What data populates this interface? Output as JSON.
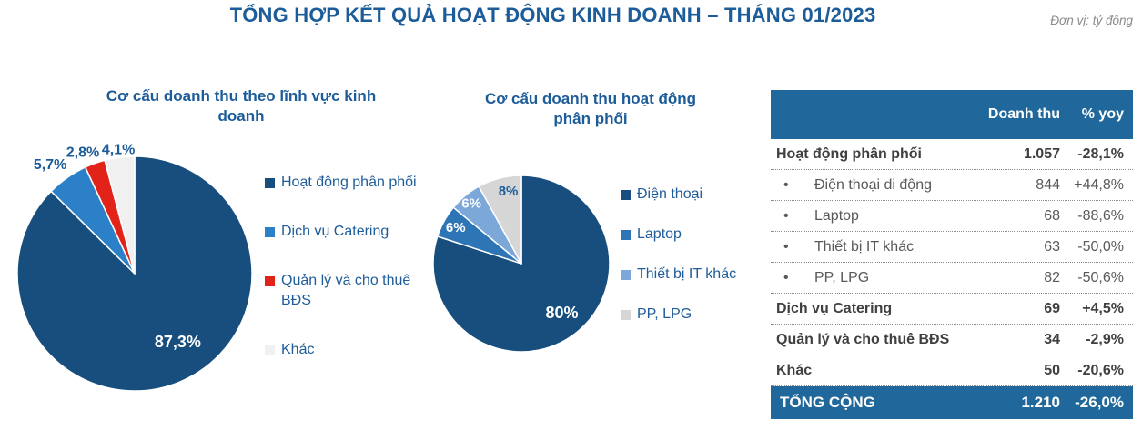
{
  "header": {
    "title": "TỔNG HỢP KẾT QUẢ HOẠT ĐỘNG KINH DOANH – THÁNG 01/2023",
    "unit_note": "Đơn vị: tỷ đồng"
  },
  "colors": {
    "accent_navy": "#1C5C99",
    "table_header_bg": "#20689B",
    "dark_blue": "#174E7D",
    "red": "#E2231A"
  },
  "chart_data": [
    {
      "type": "pie",
      "title": "Cơ cấu doanh thu theo lĩnh vực kinh doanh",
      "labels": [
        "Hoạt động phân phối",
        "Dịch vụ Catering",
        "Quản lý và cho thuê BĐS",
        "Khác"
      ],
      "values": [
        87.3,
        5.7,
        2.8,
        4.1
      ],
      "value_labels": [
        "87,3%",
        "5,7%",
        "2,8%",
        "4,1%"
      ],
      "colors": [
        "#174E7D",
        "#2B80C8",
        "#E2231A",
        "#F0F0F0"
      ],
      "legend_position": "right",
      "start_angle_deg": 0,
      "direction": "clockwise"
    },
    {
      "type": "pie",
      "title": "Cơ cấu doanh thu hoạt động phân phối",
      "labels": [
        "Điện thoại",
        "Laptop",
        "Thiết bị IT khác",
        "PP, LPG"
      ],
      "values": [
        80,
        6,
        6,
        8
      ],
      "value_labels": [
        "80%",
        "6%",
        "6%",
        "8%"
      ],
      "colors": [
        "#174E7D",
        "#2E75B6",
        "#7BA7D9",
        "#D6D6D6"
      ],
      "legend_position": "right",
      "start_angle_deg": 0,
      "direction": "clockwise"
    },
    {
      "type": "table",
      "columns": [
        "",
        "Doanh thu",
        "% yoy"
      ],
      "rows": [
        {
          "label": "Hoạt động phân phối",
          "revenue": "1.057",
          "yoy": "-28,1%",
          "style": "bold"
        },
        {
          "label": "Điện thoại di động",
          "revenue": "844",
          "yoy": "+44,8%",
          "style": "sub"
        },
        {
          "label": "Laptop",
          "revenue": "68",
          "yoy": "-88,6%",
          "style": "sub"
        },
        {
          "label": "Thiết bị IT khác",
          "revenue": "63",
          "yoy": "-50,0%",
          "style": "sub"
        },
        {
          "label": "PP, LPG",
          "revenue": "82",
          "yoy": "-50,6%",
          "style": "sub"
        },
        {
          "label": "Dịch vụ Catering",
          "revenue": "69",
          "yoy": "+4,5%",
          "style": "bold"
        },
        {
          "label": "Quản lý và cho thuê BĐS",
          "revenue": "34",
          "yoy": "-2,9%",
          "style": "bold"
        },
        {
          "label": "Khác",
          "revenue": "50",
          "yoy": "-20,6%",
          "style": "bold"
        }
      ],
      "total": {
        "label": "TỔNG CỘNG",
        "revenue": "1.210",
        "yoy": "-26,0%"
      },
      "bullet_glyph": "•"
    }
  ]
}
